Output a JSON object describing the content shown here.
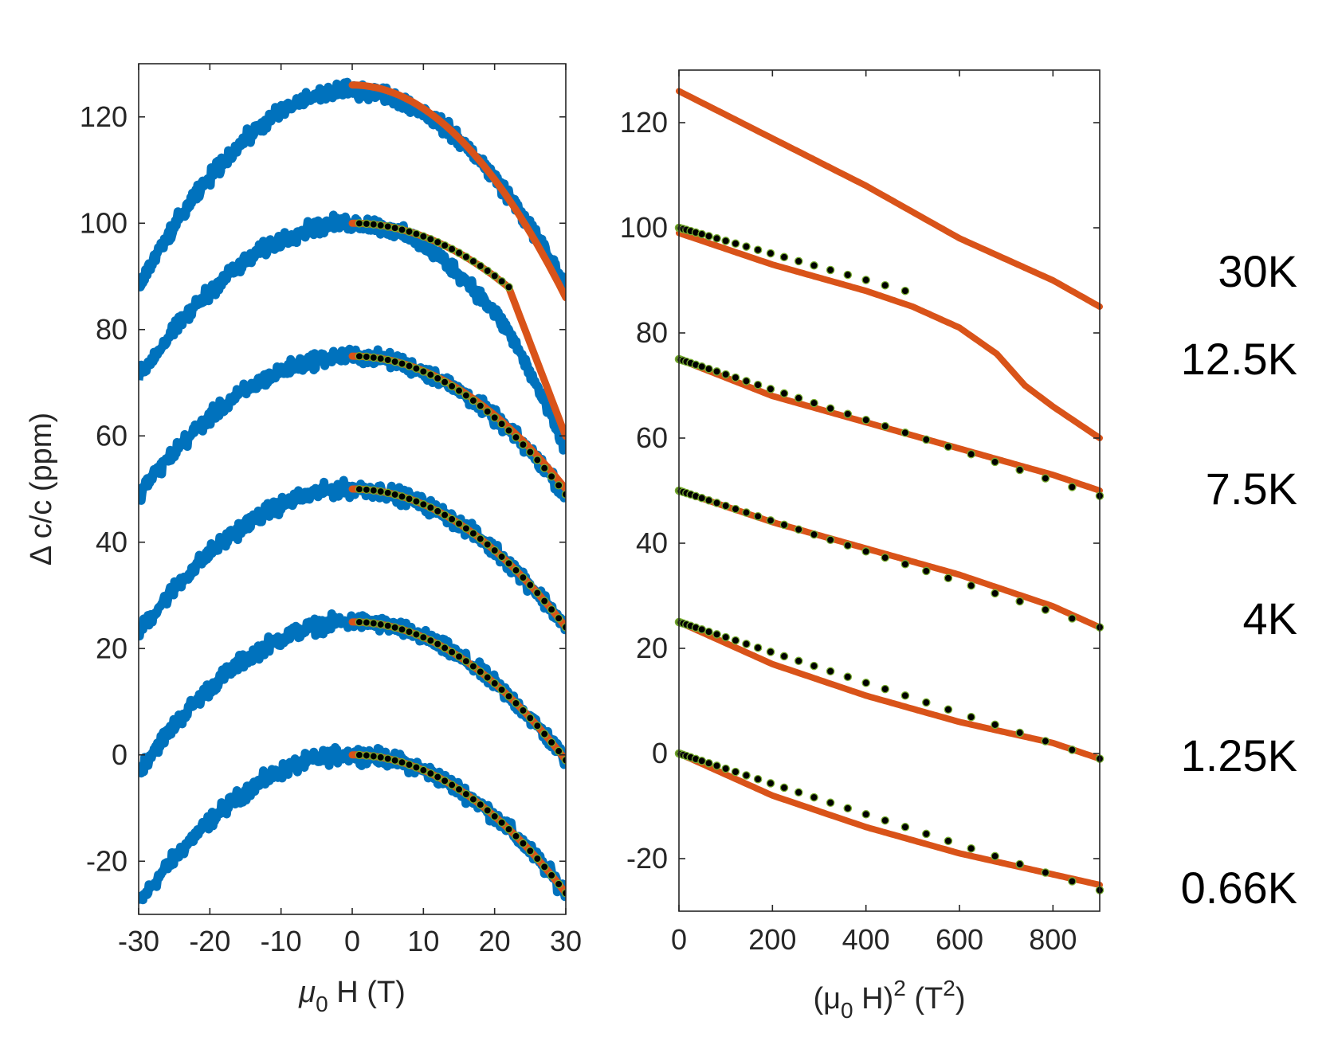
{
  "chart_data": [
    {
      "type": "scatter",
      "panel": "left",
      "xlabel": "μ0 H (T)",
      "xlabel_main": "μ",
      "xlabel_sub": "0",
      "xlabel_rest": " H (T)",
      "ylabel": "Δ c/c (ppm)",
      "xlim": [
        -30,
        30
      ],
      "ylim": [
        -30,
        130
      ],
      "xticks": [
        -30,
        -20,
        -10,
        0,
        10,
        20,
        30
      ],
      "xtick_labels": [
        "-30",
        "-20",
        "-10",
        "0",
        "10",
        "20",
        "30"
      ],
      "yticks": [
        -20,
        0,
        20,
        40,
        60,
        80,
        100,
        120
      ],
      "ytick_labels": [
        "-20",
        "0",
        "20",
        "40",
        "60",
        "80",
        "100",
        "120"
      ],
      "series": [
        {
          "name": "0.66K",
          "offset": 0,
          "measured_fit": "0.66K",
          "data_endpoints": {
            "H": [
              -30,
              0,
              30
            ],
            "ppm": [
              -28,
              0,
              -26
            ]
          },
          "fit_end": -26,
          "markers_end": -26,
          "marker_count": 30
        },
        {
          "name": "1.25K",
          "offset": 25,
          "measured_fit": "1.25K",
          "data_endpoints": {
            "H": [
              -30,
              0,
              30
            ],
            "ppm": [
              -3,
              25,
              -1
            ]
          },
          "fit_end": -1,
          "markers_end": -1,
          "marker_count": 30
        },
        {
          "name": "4K",
          "offset": 50,
          "measured_fit": "4K",
          "data_endpoints": {
            "H": [
              -30,
              0,
              30
            ],
            "ppm": [
              23,
              50,
              24
            ]
          },
          "fit_end": 24,
          "markers_end": 24,
          "marker_count": 30
        },
        {
          "name": "7.5K",
          "offset": 75,
          "measured_fit": "7.5K",
          "data_endpoints": {
            "H": [
              -30,
              0,
              30
            ],
            "ppm": [
              49,
              75,
              49
            ]
          },
          "fit_end": 50,
          "markers_end": 49,
          "marker_count": 30
        },
        {
          "name": "12.5K",
          "offset": 100,
          "measured_fit": "12.5K",
          "data_endpoints": {
            "H": [
              -30,
              0,
              30
            ],
            "ppm": [
              71,
              100,
              62
            ]
          },
          "fit_end": 60,
          "markers_end": 88,
          "markers_H_max": 22,
          "marker_count": 22
        },
        {
          "name": "30K",
          "offset": 126,
          "measured_fit": "30K",
          "data_endpoints": {
            "H": [
              -30,
              0,
              30
            ],
            "ppm": [
              88,
              125,
              88
            ]
          },
          "fit_end": 86,
          "marker_count": 0
        }
      ]
    },
    {
      "type": "scatter",
      "panel": "right",
      "xlabel": "(μ0 H)^2 (T^2)",
      "xlabel_open": "(μ",
      "xlabel_sub": "0",
      "xlabel_mid": " H)",
      "xlabel_sup": "2",
      "xlabel_unit": " (T",
      "xlabel_unit_sup": "2",
      "xlabel_close": ")",
      "xlim": [
        0,
        900
      ],
      "ylim": [
        -30,
        130
      ],
      "xticks": [
        0,
        200,
        400,
        600,
        800
      ],
      "xtick_labels": [
        "0",
        "200",
        "400",
        "600",
        "800"
      ],
      "yticks": [
        -20,
        0,
        20,
        40,
        60,
        80,
        100,
        120
      ],
      "ytick_labels": [
        "-20",
        "0",
        "20",
        "40",
        "60",
        "80",
        "100",
        "120"
      ],
      "series": [
        {
          "name": "30K",
          "fit": {
            "x": [
              0,
              200,
              400,
              600,
              800,
              900
            ],
            "y": [
              126,
              117,
              108,
              98,
              90,
              85
            ]
          }
        },
        {
          "name": "12.5K",
          "fit": {
            "x": [
              0,
              200,
              400,
              500,
              600,
              680,
              740,
              800,
              900
            ],
            "y": [
              99,
              93,
              88,
              85,
              81,
              76,
              70,
              66,
              60
            ]
          },
          "markers": {
            "x": [
              0,
              484
            ],
            "y": [
              100,
              88
            ]
          }
        },
        {
          "name": "7.5K",
          "fit": {
            "x": [
              0,
              200,
              400,
              600,
              800,
              900
            ],
            "y": [
              75,
              68,
              63,
              58,
              53,
              50
            ]
          },
          "markers": {
            "x": [
              0,
              900
            ],
            "y": [
              75,
              49
            ]
          }
        },
        {
          "name": "4K",
          "fit": {
            "x": [
              0,
              200,
              400,
              600,
              800,
              900
            ],
            "y": [
              50,
              44,
              39,
              34,
              28,
              24
            ]
          },
          "markers": {
            "x": [
              0,
              900
            ],
            "y": [
              50,
              24
            ]
          }
        },
        {
          "name": "1.25K",
          "fit": {
            "x": [
              0,
              200,
              400,
              600,
              800,
              900
            ],
            "y": [
              25,
              17,
              11,
              6,
              2,
              -1
            ]
          },
          "markers": {
            "x": [
              0,
              900
            ],
            "y": [
              25,
              -1
            ]
          }
        },
        {
          "name": "0.66K",
          "fit": {
            "x": [
              0,
              200,
              400,
              600,
              800,
              900
            ],
            "y": [
              0,
              -8,
              -14,
              -19,
              -23,
              -25
            ]
          },
          "markers": {
            "x": [
              0,
              900
            ],
            "y": [
              0,
              -26
            ]
          }
        }
      ]
    }
  ],
  "temperature_labels": [
    "30K",
    "12.5K",
    "7.5K",
    "4K",
    "1.25K",
    "0.66K"
  ],
  "colors": {
    "measured": "#0072BD",
    "fit": "#D95319",
    "marker_fill": "#000000",
    "marker_edge": "#77AC30",
    "axis": "#262626"
  }
}
